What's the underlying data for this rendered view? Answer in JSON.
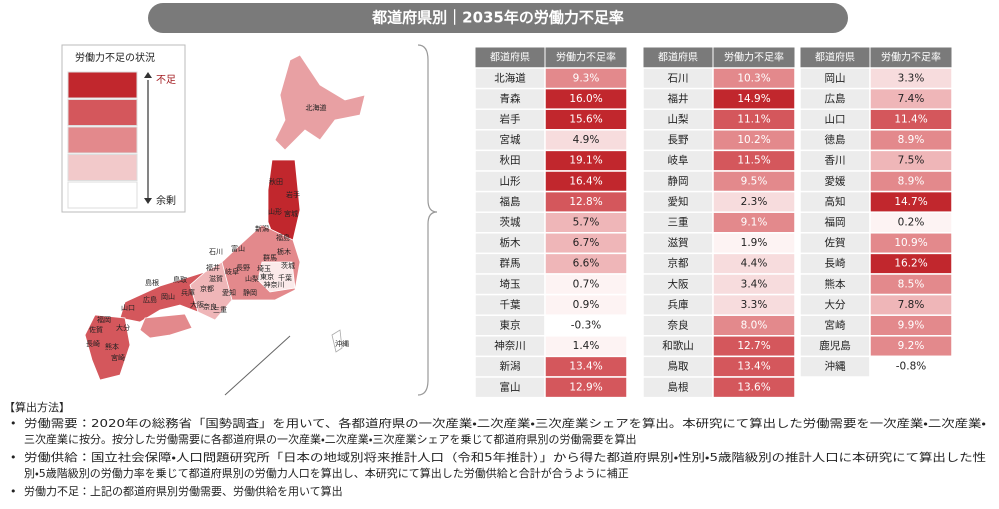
{
  "title": "都道府県別｜2035年の労働力不足率",
  "legend": {
    "title": "労働力不足の状況",
    "high": "不足",
    "low": "余剰",
    "colors": [
      "#c1272d",
      "#d4575c",
      "#e3898c",
      "#f2c9ca",
      "#ffffff"
    ]
  },
  "map": {
    "labels": [
      "北海道",
      "秋田",
      "岩手",
      "山形",
      "宮城",
      "新潟",
      "福島",
      "石川",
      "富山",
      "群馬",
      "栃木",
      "長野",
      "岐阜",
      "埼玉",
      "茨城",
      "山梨",
      "東京",
      "千葉",
      "神奈川",
      "福井",
      "滋賀",
      "京都",
      "静岡",
      "愛知",
      "鳥取",
      "島根",
      "兵庫",
      "岡山",
      "広島",
      "大阪",
      "奈良",
      "三重",
      "山口",
      "福岡",
      "佐賀",
      "大分",
      "長崎",
      "熊本",
      "宮崎",
      "沖縄"
    ]
  },
  "tables": [
    {
      "headers": [
        "都道府県",
        "労働力不足率"
      ],
      "rows": [
        {
          "name": "北海道",
          "rate": "9.3%",
          "color": "#e3898c"
        },
        {
          "name": "青森",
          "rate": "16.0%",
          "color": "#c1272d"
        },
        {
          "name": "岩手",
          "rate": "15.6%",
          "color": "#c1272d"
        },
        {
          "name": "宮城",
          "rate": "4.9%",
          "color": "#f7dcdd"
        },
        {
          "name": "秋田",
          "rate": "19.1%",
          "color": "#c1272d"
        },
        {
          "name": "山形",
          "rate": "16.4%",
          "color": "#c1272d"
        },
        {
          "name": "福島",
          "rate": "12.8%",
          "color": "#d4575c"
        },
        {
          "name": "茨城",
          "rate": "5.7%",
          "color": "#efb6b8"
        },
        {
          "name": "栃木",
          "rate": "6.7%",
          "color": "#efb6b8"
        },
        {
          "name": "群馬",
          "rate": "6.6%",
          "color": "#efb6b8"
        },
        {
          "name": "埼玉",
          "rate": "0.7%",
          "color": "#fdf3f3"
        },
        {
          "name": "千葉",
          "rate": "0.9%",
          "color": "#fdf3f3"
        },
        {
          "name": "東京",
          "rate": "-0.3%",
          "color": "#ffffff"
        },
        {
          "name": "神奈川",
          "rate": "1.4%",
          "color": "#fdf3f3"
        },
        {
          "name": "新潟",
          "rate": "13.4%",
          "color": "#d4575c"
        },
        {
          "name": "富山",
          "rate": "12.9%",
          "color": "#d4575c"
        }
      ]
    },
    {
      "headers": [
        "都道府県",
        "労働力不足率"
      ],
      "rows": [
        {
          "name": "石川",
          "rate": "10.3%",
          "color": "#e3898c"
        },
        {
          "name": "福井",
          "rate": "14.9%",
          "color": "#c1272d"
        },
        {
          "name": "山梨",
          "rate": "11.1%",
          "color": "#d4575c"
        },
        {
          "name": "長野",
          "rate": "10.2%",
          "color": "#e3898c"
        },
        {
          "name": "岐阜",
          "rate": "11.5%",
          "color": "#d4575c"
        },
        {
          "name": "静岡",
          "rate": "9.5%",
          "color": "#e3898c"
        },
        {
          "name": "愛知",
          "rate": "2.3%",
          "color": "#f7dcdd"
        },
        {
          "name": "三重",
          "rate": "9.1%",
          "color": "#e3898c"
        },
        {
          "name": "滋賀",
          "rate": "1.9%",
          "color": "#fdf3f3"
        },
        {
          "name": "京都",
          "rate": "4.4%",
          "color": "#f7dcdd"
        },
        {
          "name": "大阪",
          "rate": "3.4%",
          "color": "#f7dcdd"
        },
        {
          "name": "兵庫",
          "rate": "3.3%",
          "color": "#f7dcdd"
        },
        {
          "name": "奈良",
          "rate": "8.0%",
          "color": "#e3898c"
        },
        {
          "name": "和歌山",
          "rate": "12.7%",
          "color": "#d4575c"
        },
        {
          "name": "鳥取",
          "rate": "13.4%",
          "color": "#d4575c"
        },
        {
          "name": "島根",
          "rate": "13.6%",
          "color": "#d4575c"
        }
      ]
    },
    {
      "headers": [
        "都道府県",
        "労働力不足率"
      ],
      "rows": [
        {
          "name": "岡山",
          "rate": "3.3%",
          "color": "#f7dcdd"
        },
        {
          "name": "広島",
          "rate": "7.4%",
          "color": "#efb6b8"
        },
        {
          "name": "山口",
          "rate": "11.4%",
          "color": "#d4575c"
        },
        {
          "name": "徳島",
          "rate": "8.9%",
          "color": "#e3898c"
        },
        {
          "name": "香川",
          "rate": "7.5%",
          "color": "#efb6b8"
        },
        {
          "name": "愛媛",
          "rate": "8.9%",
          "color": "#e3898c"
        },
        {
          "name": "高知",
          "rate": "14.7%",
          "color": "#c1272d"
        },
        {
          "name": "福岡",
          "rate": "0.2%",
          "color": "#fdf3f3"
        },
        {
          "name": "佐賀",
          "rate": "10.9%",
          "color": "#e3898c"
        },
        {
          "name": "長崎",
          "rate": "16.2%",
          "color": "#c1272d"
        },
        {
          "name": "熊本",
          "rate": "8.5%",
          "color": "#e3898c"
        },
        {
          "name": "大分",
          "rate": "7.8%",
          "color": "#efb6b8"
        },
        {
          "name": "宮崎",
          "rate": "9.9%",
          "color": "#e3898c"
        },
        {
          "name": "鹿児島",
          "rate": "9.2%",
          "color": "#e3898c"
        },
        {
          "name": "沖縄",
          "rate": "-0.8%",
          "color": "#ffffff"
        }
      ]
    }
  ],
  "notes": {
    "heading": "【算出方法】",
    "items": [
      [
        "労働需要：2020年の総務省「国勢調査」を用いて、各都道府県の一次産業・二次産業・三次産業シェアを算出。本研究にて算出した労働需要を一次産業・二次産業・",
        "三次産業に按分。按分した労働需要に各都道府県の一次産業・二次産業・三次産業シェアを乗じて都道府県別の労働需要を算出"
      ],
      [
        "労働供給：国立社会保障・人口問題研究所「日本の地域別将来推計人口（令和5年推計）」から得た都道府県別・性別・5歳階級別の推計人口に本研究にて算出した性",
        "別・5歳階級別の労働力率を乗じて都道府県別の労働力人口を算出し、本研究にて算出した労働供給と合計が合うように補正"
      ],
      [
        "労働力不足：上記の都道府県別労働需要、労働供給を用いて算出"
      ]
    ]
  }
}
